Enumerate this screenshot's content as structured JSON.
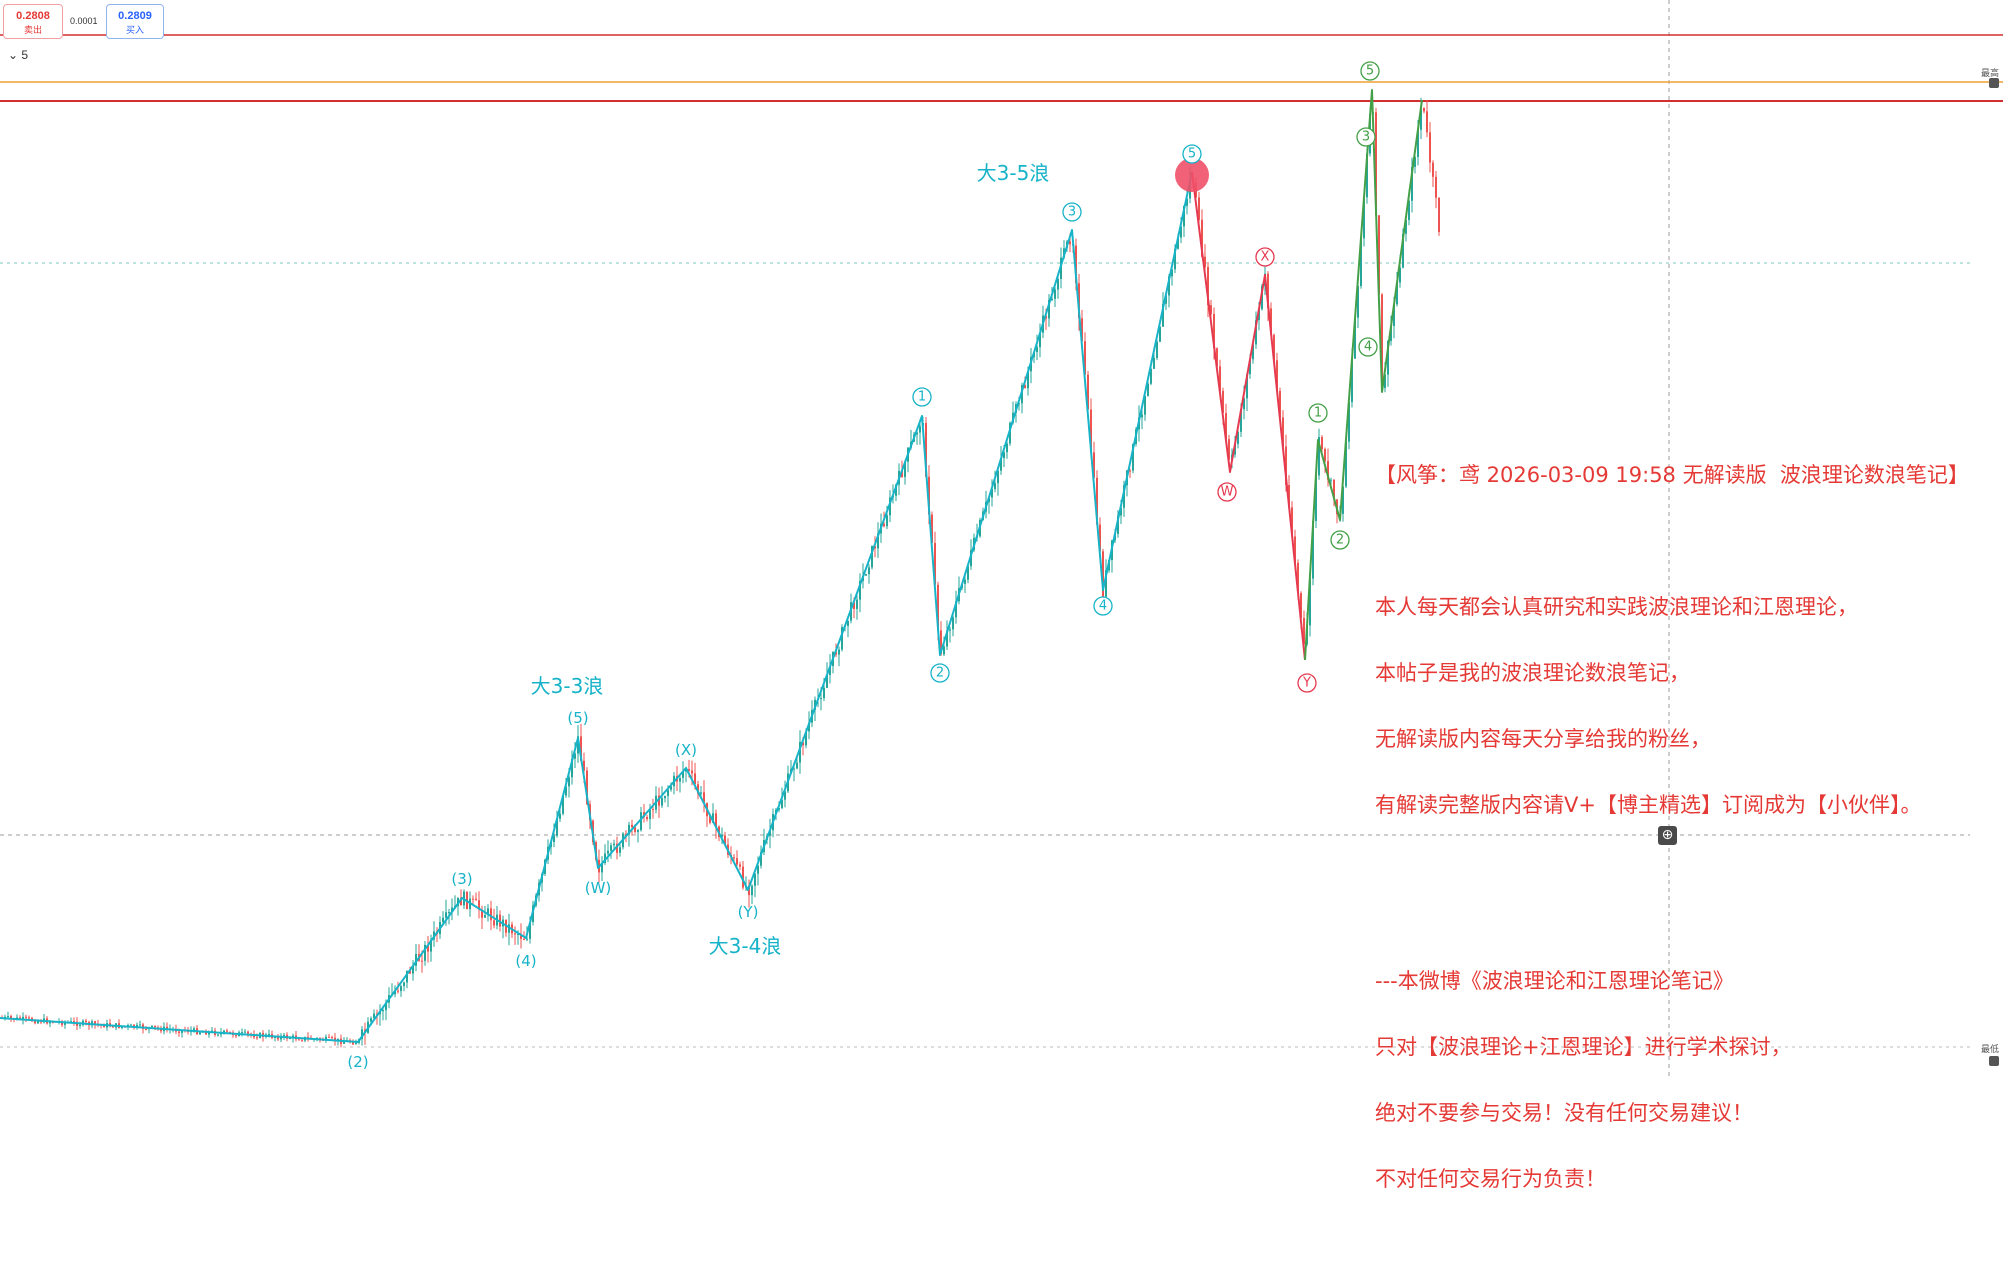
{
  "toolbar": {
    "sell_price": "0.2808",
    "sell_label": "卖出",
    "spread": "0.0001",
    "buy_price": "0.2809",
    "buy_label": "买入",
    "interval_icon": "chevron-down-icon",
    "interval_value": "5"
  },
  "axis_tags": {
    "top": "最高",
    "bottom": "最低"
  },
  "annotation": {
    "title": "【风筝：鸢 2026-03-09 19:58 无解读版  波浪理论数浪笔记】",
    "para1": [
      "本人每天都会认真研究和实践波浪理论和江恩理论，",
      "本帖子是我的波浪理论数浪笔记，",
      "无解读版内容每天分享给我的粉丝，",
      "有解读完整版内容请V+【博主精选】订阅成为【小伙伴】。"
    ],
    "para2": [
      "---本微博《波浪理论和江恩理论笔记》",
      "只对【波浪理论+江恩理论】进行学术探讨，",
      "绝对不要参与交易！没有任何交易建议！",
      "不对任何交易行为负责！"
    ]
  },
  "colors": {
    "wave_cyan": "#17b3c8",
    "wave_red": "#e53950",
    "wave_green": "#43a047",
    "candle_up": "#26a69a",
    "candle_down": "#ef5350",
    "level_red": "#d32f2f",
    "level_orange": "#f0a030"
  },
  "chart_data": {
    "type": "candlestick",
    "price_levels": [
      {
        "color": "red"
      },
      {
        "color": "orange"
      },
      {
        "color": "red"
      }
    ],
    "wave_labels": [
      {
        "text": "大3-3浪",
        "kind": "title"
      },
      {
        "text": "大3-4浪",
        "kind": "title"
      },
      {
        "text": "大3-5浪",
        "kind": "title"
      },
      {
        "text": "(2)",
        "kind": "paren"
      },
      {
        "text": "(3)",
        "kind": "paren"
      },
      {
        "text": "(4)",
        "kind": "paren"
      },
      {
        "text": "(5)",
        "kind": "paren"
      },
      {
        "text": "(W)",
        "kind": "paren"
      },
      {
        "text": "(X)",
        "kind": "paren"
      },
      {
        "text": "(Y)",
        "kind": "paren"
      },
      {
        "text": "1",
        "kind": "circle-cyan"
      },
      {
        "text": "2",
        "kind": "circle-cyan"
      },
      {
        "text": "3",
        "kind": "circle-cyan"
      },
      {
        "text": "4",
        "kind": "circle-cyan"
      },
      {
        "text": "5",
        "kind": "circle-cyan"
      },
      {
        "text": "W",
        "kind": "circle-red"
      },
      {
        "text": "X",
        "kind": "circle-red"
      },
      {
        "text": "Y",
        "kind": "circle-red"
      },
      {
        "text": "1",
        "kind": "circle-green"
      },
      {
        "text": "2",
        "kind": "circle-green"
      },
      {
        "text": "3",
        "kind": "circle-green"
      },
      {
        "text": "4",
        "kind": "circle-green"
      },
      {
        "text": "5",
        "kind": "circle-green"
      }
    ]
  }
}
